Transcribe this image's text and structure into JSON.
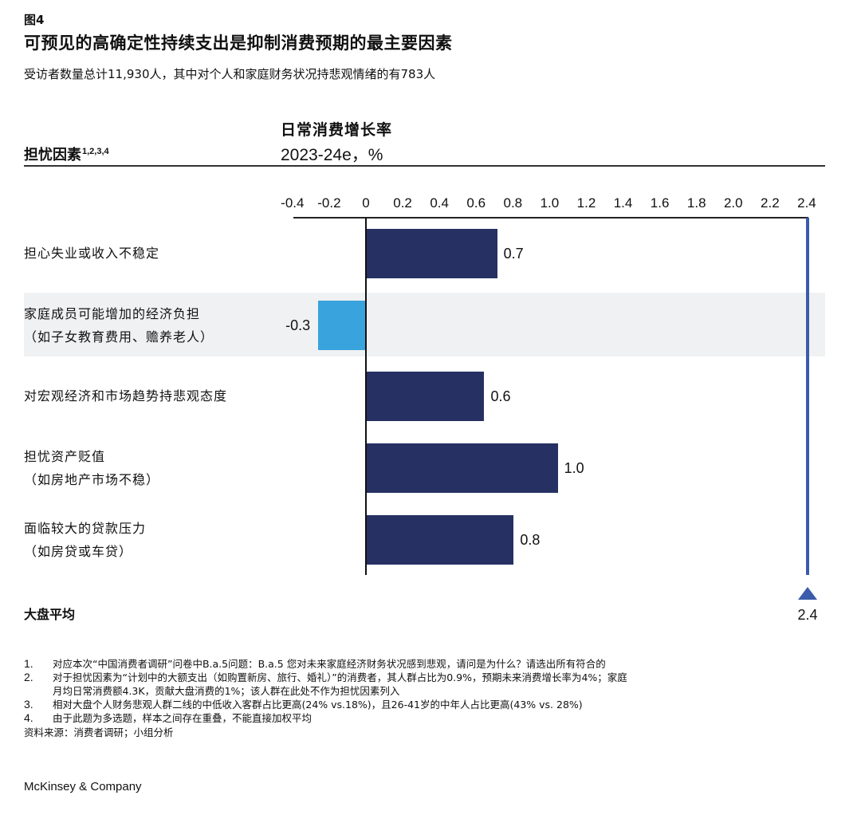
{
  "figure": {
    "number": "图4",
    "title": "可预见的高确定性持续支出是抑制消费预期的最主要因素",
    "subtitle": "受访者数量总计11,930人，其中对个人和家庭财务状况持悲观情绪的有783人"
  },
  "headers": {
    "factor": "担忧因素",
    "factor_footnotes": "1,2,3,4",
    "metric_title": "日常消费增长率",
    "metric_sub": "2023-24e，%"
  },
  "colors": {
    "positive_bar": "#263063",
    "negative_bar": "#39a3dd",
    "average_marker": "#3b5bab",
    "highlight_band": "#f0f1f3"
  },
  "chart_data": {
    "type": "bar",
    "orientation": "horizontal",
    "title": "日常消费增长率 2023-24e，%",
    "xlabel": "",
    "ylabel": "担忧因素",
    "xlim": [
      -0.4,
      2.4
    ],
    "ticks": [
      "-0.4",
      "-0.2",
      "0",
      "0.2",
      "0.4",
      "0.6",
      "0.8",
      "1.0",
      "1.2",
      "1.4",
      "1.6",
      "1.8",
      "2.0",
      "2.2",
      "2.4"
    ],
    "grid": false,
    "categories": [
      "担心失业或收入不稳定",
      "家庭成员可能增加的经济负担（如子女教育费用、赡养老人）",
      "对宏观经济和市场趋势持悲观态度",
      "担忧资产贬值（如房地产市场不稳）",
      "面临较大的贷款压力（如房贷或车贷）"
    ],
    "values": [
      0.7,
      -0.3,
      0.6,
      1.0,
      0.8
    ],
    "reference_line": {
      "label": "大盘平均",
      "value": 2.4
    }
  },
  "rows": [
    {
      "line1": "担心失业或收入不稳定",
      "line2": "",
      "value": 0.71,
      "label": "0.7",
      "highlight": false
    },
    {
      "line1": "家庭成员可能增加的经济负担",
      "line2": "（如子女教育费用、赡养老人）",
      "value": -0.26,
      "label": "-0.3",
      "highlight": true
    },
    {
      "line1": "对宏观经济和市场趋势持悲观态度",
      "line2": "",
      "value": 0.64,
      "label": "0.6",
      "highlight": false
    },
    {
      "line1": "担忧资产贬值",
      "line2": "（如房地产市场不稳）",
      "value": 1.04,
      "label": "1.0",
      "highlight": false
    },
    {
      "line1": "面临较大的贷款压力",
      "line2": "（如房贷或车贷）",
      "value": 0.8,
      "label": "0.8",
      "highlight": false
    }
  ],
  "average": {
    "label": "大盘平均",
    "value": 2.4,
    "display": "2.4"
  },
  "footnotes": [
    {
      "num": "1.",
      "text": "对应本次“中国消费者调研”问卷中B.a.5问题：B.a.5 您对未来家庭经济财务状况感到悲观，请问是为什么？请选出所有符合的"
    },
    {
      "num": "2.",
      "text": "对于担忧因素为“计划中的大额支出（如购置新房、旅行、婚礼）”的消费者，其人群占比为0.9%，预期未来消费增长率为4%；家庭",
      "cont": "月均日常消费额4.3K，贡献大盘消费的1%；该人群在此处不作为担忧因素列入"
    },
    {
      "num": "3.",
      "text": "相对大盘个人财务悲观人群二线的中低收入客群占比更高(24% vs.18%)，且26-41岁的中年人占比更高(43% vs. 28%)"
    },
    {
      "num": "4.",
      "text": "由于此题为多选题，样本之间存在重叠，不能直接加权平均"
    }
  ],
  "source": "资料来源：消费者调研；小组分析",
  "brand": "McKinsey & Company"
}
